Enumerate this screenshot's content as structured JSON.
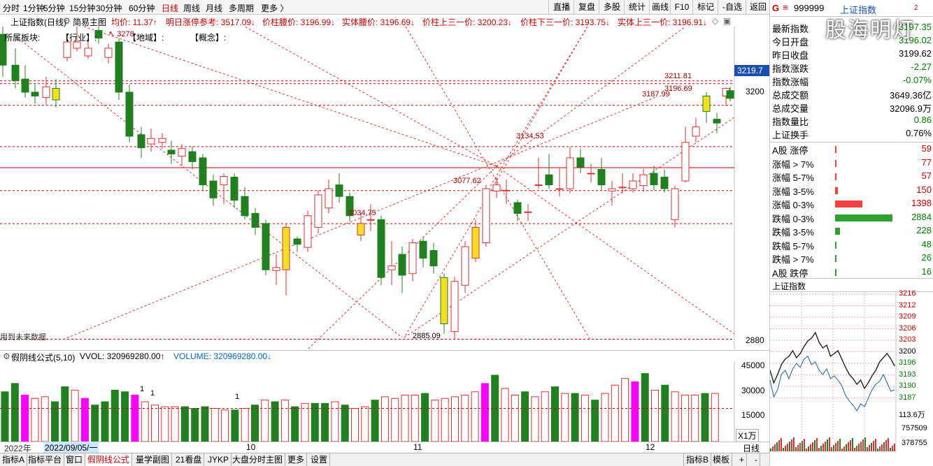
{
  "toolbar": {
    "periods": [
      "分时",
      "1分钟",
      "5分钟",
      "15分钟",
      "30分钟",
      "60分钟",
      "日线",
      "周线",
      "月线",
      "多周期",
      "更多 〉"
    ],
    "active_period": "日线",
    "right_buttons": [
      "直播",
      "复盘",
      "多股",
      "统计",
      "画线",
      "F10",
      "标记",
      "-自选",
      "返回"
    ]
  },
  "info": {
    "index_title": "上证指数(日线)",
    "main_chart_label": "简易主图",
    "avg_price": "均价: 11.37↑",
    "limit_ref": "明日涨停参考: 3517.09↓",
    "waist_price": "价柱腰价: 3196.99↓",
    "body_waist": "实体腰价: 3196.69↓",
    "upper_third": "价柱上三一价: 3200.23↓",
    "lower_third": "价柱下三一价: 3193.75↓",
    "body_upper_third": "实体上三一价: 3196.91↓"
  },
  "sector": {
    "label": "所属板块:",
    "industry": "【行业】:",
    "region": "【地域】:",
    "concept": "【概念】:"
  },
  "chart": {
    "price_axis": [
      "3219.7",
      "3200",
      "2880"
    ],
    "highlight_axis": "3219.7",
    "annotations": [
      "3278",
      "3211.81",
      "3196.69",
      "3187.99",
      "3134.53",
      "3077.62",
      "3034.75",
      "2885.09"
    ],
    "future_note": "用到未来数据",
    "date_labels": [
      "2022年",
      "2022/09/05/一",
      "10",
      "11",
      "12"
    ],
    "period_label": "日线"
  },
  "volume": {
    "formula": "假阴线公式(5,10)",
    "vvol_label": "VVOL: 320969280.00↑",
    "volume_label": "VOLUME: 320969280.00↓",
    "axis": [
      "45000",
      "30000",
      "15000"
    ],
    "unit": "X1万",
    "marks": [
      "1",
      "1",
      "1"
    ]
  },
  "panel": {
    "header_code": "999999",
    "header_name": "上证指数",
    "header_flag": "G",
    "header_badge": "2",
    "stats": [
      {
        "label": "最新指数",
        "value": "3197.35",
        "color": "#008000"
      },
      {
        "label": "今日开盘",
        "value": "3196.02",
        "color": "#008000"
      },
      {
        "label": "昨日收盘",
        "value": "3199.62",
        "color": "#000000"
      },
      {
        "label": "指数涨跌",
        "value": "-2.27",
        "color": "#008000"
      },
      {
        "label": "指数涨幅",
        "value": "-0.07%",
        "color": "#008000"
      },
      {
        "label": "总成交额",
        "value": "3649.36亿",
        "color": "#000000"
      },
      {
        "label": "总成交量",
        "value": "32096.9万",
        "color": "#000000"
      },
      {
        "label": "指数量比",
        "value": "0.86",
        "color": "#008000"
      },
      {
        "label": "上证换手",
        "value": "0.76%",
        "color": "#000000"
      }
    ],
    "breadth": [
      {
        "label": "A股 涨停",
        "value": "59",
        "color": "#d00000",
        "bar": 0.02
      },
      {
        "label": "涨幅 > 7%",
        "value": "77",
        "color": "#d00000",
        "bar": 0.03
      },
      {
        "label": "涨幅 5-7%",
        "value": "57",
        "color": "#d00000",
        "bar": 0.02
      },
      {
        "label": "涨幅 3-5%",
        "value": "150",
        "color": "#d00000",
        "bar": 0.05
      },
      {
        "label": "涨幅 0-3%",
        "value": "1398",
        "color": "#d00000",
        "bar": 0.48
      },
      {
        "label": "跌幅 0-3%",
        "value": "2884",
        "color": "#008000",
        "bar": 1.0
      },
      {
        "label": "跌幅 3-5%",
        "value": "228",
        "color": "#008000",
        "bar": 0.08
      },
      {
        "label": "跌幅 5-7%",
        "value": "48",
        "color": "#008000",
        "bar": 0.02
      },
      {
        "label": "跌幅 > 7%",
        "value": "26",
        "color": "#008000",
        "bar": 0.01
      },
      {
        "label": "A股 跌停",
        "value": "16",
        "color": "#008000",
        "bar": 0.01
      }
    ],
    "mini_title": "上证指数",
    "mini_axis": [
      "3216",
      "3212",
      "3209",
      "3206",
      "3203",
      "3200",
      "3196",
      "3193",
      "3190",
      "3187"
    ],
    "mini_vol_axis": [
      "113.6万",
      "757509",
      "378755"
    ]
  },
  "bottom_tabs": [
    "指标A",
    "指标平台",
    "窗口",
    "假阴线公式",
    "量学副图",
    "21看盘",
    "JYKP",
    "大盘分时主图",
    "更多",
    "设置"
  ],
  "bottom_active": "假阴线公式",
  "bottom_right": [
    "指标B",
    "模板",
    "+",
    "-"
  ],
  "watermark": "股海明灯"
}
